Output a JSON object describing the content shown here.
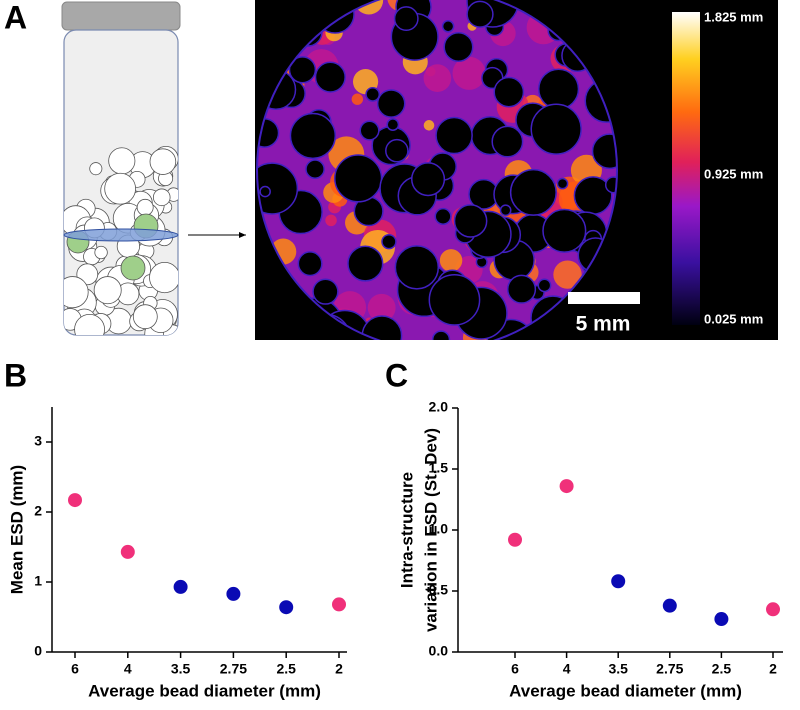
{
  "figure": {
    "panel_labels": [
      "A",
      "B",
      "C"
    ],
    "colorbar": {
      "labels": [
        "1.825 mm",
        "0.925 mm",
        "0.025 mm"
      ]
    },
    "scale_bar": "5 mm"
  },
  "chart_data": [
    {
      "type": "scatter",
      "ylabel": "Mean ESD (mm)",
      "xlabel": "Average bead diameter (mm)",
      "categories": [
        "6",
        "4",
        "3.5",
        "2.75",
        "2.5",
        "2"
      ],
      "values": [
        2.17,
        1.43,
        0.93,
        0.83,
        0.64,
        0.68
      ],
      "colors": [
        "#f0307a",
        "#f0307a",
        "#0a0ab4",
        "#0a0ab4",
        "#0a0ab4",
        "#f0307a"
      ],
      "ylim": [
        0,
        3.5
      ],
      "yticks": [
        0,
        1,
        2,
        3
      ]
    },
    {
      "type": "scatter",
      "ylabel": [
        "Intra-structure",
        "variation in ESD (St. Dev)"
      ],
      "xlabel": "Average bead diameter (mm)",
      "categories": [
        "6",
        "4",
        "3.5",
        "2.75",
        "2.5",
        "2"
      ],
      "values": [
        0.92,
        1.36,
        0.58,
        0.38,
        0.27,
        0.35
      ],
      "colors": [
        "#f0307a",
        "#f0307a",
        "#0a0ab4",
        "#0a0ab4",
        "#0a0ab4",
        "#f0307a"
      ],
      "ylim": [
        0,
        2.0
      ],
      "yticks": [
        {
          "value": 0,
          "label": "0.0"
        },
        0.5,
        {
          "value": 1,
          "label": "1.0"
        },
        1.5,
        {
          "value": 2,
          "label": "2.0"
        }
      ]
    }
  ]
}
